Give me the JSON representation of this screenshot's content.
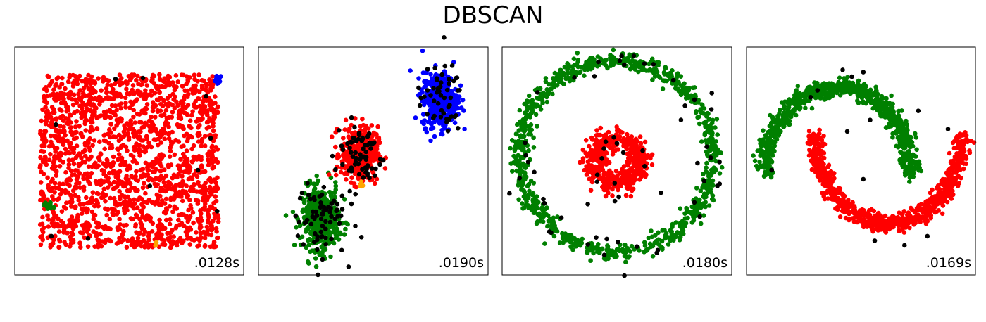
{
  "title": "DBSCAN",
  "colors": {
    "red": "#ff0000",
    "green": "#008000",
    "blue": "#0000ff",
    "orange": "#ffa500",
    "noise": "#000000",
    "frame": "#000000"
  },
  "chart_data": [
    {
      "type": "scatter",
      "dataset": "uniform",
      "time_label": ".0128s",
      "xlim": [
        -2.5,
        2.5
      ],
      "ylim": [
        -2.5,
        2.5
      ],
      "ticks": false,
      "clusters": [
        {
          "color": "red",
          "shape": "rect",
          "x": [
            -1.95,
            1.95
          ],
          "y": [
            -1.9,
            1.9
          ],
          "n": 1750
        },
        {
          "color": "blue",
          "shape": "blob",
          "cx": 1.95,
          "cy": 1.75,
          "sx": 0.06,
          "sy": 0.06,
          "n": 12
        },
        {
          "color": "green",
          "shape": "blob",
          "cx": -1.78,
          "cy": -0.98,
          "sx": 0.06,
          "sy": 0.04,
          "n": 14
        },
        {
          "color": "orange",
          "shape": "blob",
          "cx": 0.59,
          "cy": -1.83,
          "sx": 0.02,
          "sy": 0.04,
          "n": 6
        }
      ],
      "noise": [
        [
          -1.7,
          -1.65
        ],
        [
          1.68,
          1.42
        ],
        [
          -0.3,
          1.8
        ],
        [
          0.45,
          -0.55
        ],
        [
          1.92,
          -1.1
        ],
        [
          -1.6,
          0.8
        ],
        [
          1.5,
          -0.2
        ],
        [
          -0.9,
          -1.7
        ],
        [
          0.3,
          1.82
        ],
        [
          1.78,
          0.5
        ]
      ]
    },
    {
      "type": "scatter",
      "dataset": "blobs",
      "time_label": ".0190s",
      "xlim": [
        -2.5,
        2.5
      ],
      "ylim": [
        -2.5,
        2.5
      ],
      "ticks": false,
      "clusters": [
        {
          "color": "green",
          "shape": "blob",
          "cx": -1.15,
          "cy": -1.25,
          "sx": 0.2,
          "sy": 0.34,
          "n": 420
        },
        {
          "color": "red",
          "shape": "blob",
          "cx": -0.3,
          "cy": 0.15,
          "sx": 0.2,
          "sy": 0.3,
          "n": 400
        },
        {
          "color": "blue",
          "shape": "blob",
          "cx": 1.45,
          "cy": 1.35,
          "sx": 0.19,
          "sy": 0.3,
          "n": 400
        },
        {
          "color": "orange",
          "shape": "blob",
          "cx": -0.25,
          "cy": -0.55,
          "sx": 0.02,
          "sy": 0.04,
          "n": 5
        }
      ],
      "noise_blobs": [
        {
          "cx": -1.15,
          "cy": -1.25,
          "sx": 0.27,
          "sy": 0.42,
          "n": 70
        },
        {
          "cx": -0.3,
          "cy": 0.15,
          "sx": 0.26,
          "sy": 0.38,
          "n": 70
        },
        {
          "cx": 1.45,
          "cy": 1.35,
          "sx": 0.25,
          "sy": 0.38,
          "n": 50
        }
      ]
    },
    {
      "type": "scatter",
      "dataset": "noisy_circles",
      "time_label": ".0180s",
      "xlim": [
        -2.5,
        2.5
      ],
      "ylim": [
        -2.5,
        2.5
      ],
      "ticks": false,
      "clusters": [
        {
          "color": "green",
          "shape": "ring",
          "cx": 0.0,
          "cy": 0.1,
          "r": 2.1,
          "jitter": 0.1,
          "n": 900
        },
        {
          "color": "red",
          "shape": "ring",
          "cx": 0.0,
          "cy": 0.0,
          "r": 0.5,
          "jitter": 0.12,
          "n": 500
        }
      ],
      "noise_ring": [
        {
          "cx": 0.0,
          "cy": 0.1,
          "r": 2.1,
          "jitter": 0.2,
          "n": 45
        },
        {
          "cx": 0.0,
          "cy": 0.0,
          "r": 0.5,
          "jitter": 0.25,
          "n": 15
        }
      ]
    },
    {
      "type": "scatter",
      "dataset": "noisy_moons",
      "time_label": ".0169s",
      "xlim": [
        -2.5,
        2.5
      ],
      "ylim": [
        -2.5,
        2.5
      ],
      "ticks": false,
      "clusters": [
        {
          "color": "green",
          "shape": "moon_upper",
          "cx": -0.5,
          "cy": -0.3,
          "r": 1.6,
          "jitter": 0.1,
          "n": 800
        },
        {
          "color": "red",
          "shape": "moon_lower",
          "cx": 0.6,
          "cy": 0.55,
          "r": 1.6,
          "jitter": 0.1,
          "n": 800
        }
      ],
      "noise": [
        [
          -0.4,
          2.0
        ],
        [
          0.05,
          1.95
        ],
        [
          -1.95,
          -0.2
        ],
        [
          1.45,
          -1.65
        ],
        [
          1.9,
          0.7
        ],
        [
          -0.2,
          1.85
        ],
        [
          0.2,
          0.9
        ],
        [
          -1.1,
          1.4
        ],
        [
          0.95,
          -1.85
        ],
        [
          0.3,
          -1.75
        ],
        [
          -0.95,
          1.55
        ],
        [
          1.25,
          1.1
        ],
        [
          0.05,
          -0.4
        ],
        [
          -0.3,
          0.65
        ]
      ]
    }
  ]
}
